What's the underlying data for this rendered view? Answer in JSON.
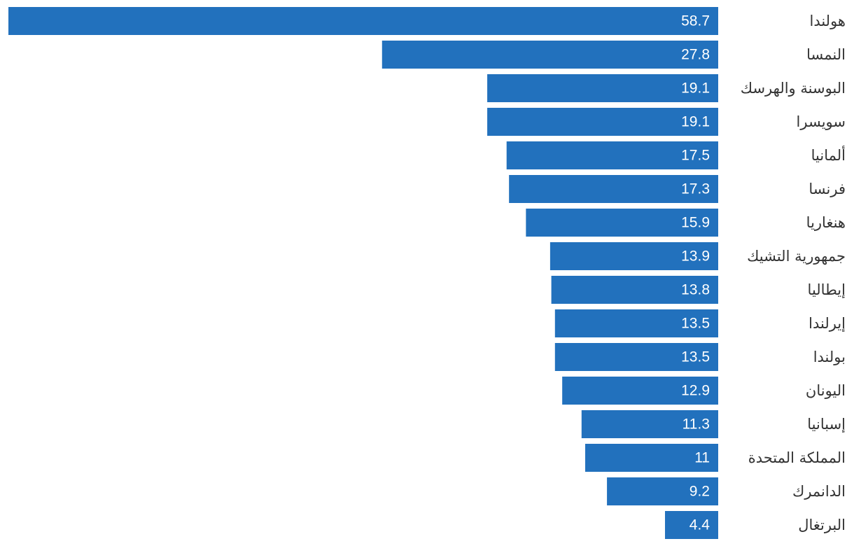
{
  "chart_data": {
    "type": "bar",
    "orientation": "horizontal",
    "direction": "rtl",
    "bar_color": "#2271bd",
    "value_label_color": "#ffffff",
    "category_label_color": "#333333",
    "categories": [
      "هولندا",
      "النمسا",
      "البوسنة والهرسك",
      "سويسرا",
      "ألمانيا",
      "فرنسا",
      "هنغاريا",
      "جمهورية التشيك",
      "إيطاليا",
      "إيرلندا",
      "بولندا",
      "اليونان",
      "إسبانيا",
      "المملكة المتحدة",
      "الدانمرك",
      "البرتغال"
    ],
    "values": [
      58.7,
      27.8,
      19.1,
      19.1,
      17.5,
      17.3,
      15.9,
      13.9,
      13.8,
      13.5,
      13.5,
      12.9,
      11.3,
      11,
      9.2,
      4.4
    ],
    "value_labels": [
      "58.7",
      "27.8",
      "19.1",
      "19.1",
      "17.5",
      "17.3",
      "15.9",
      "13.9",
      "13.8",
      "13.5",
      "13.5",
      "12.9",
      "11.3",
      "11",
      "9.2",
      "4.4"
    ],
    "xlim": [
      0,
      58.7
    ],
    "grid": false,
    "legend": "none"
  }
}
